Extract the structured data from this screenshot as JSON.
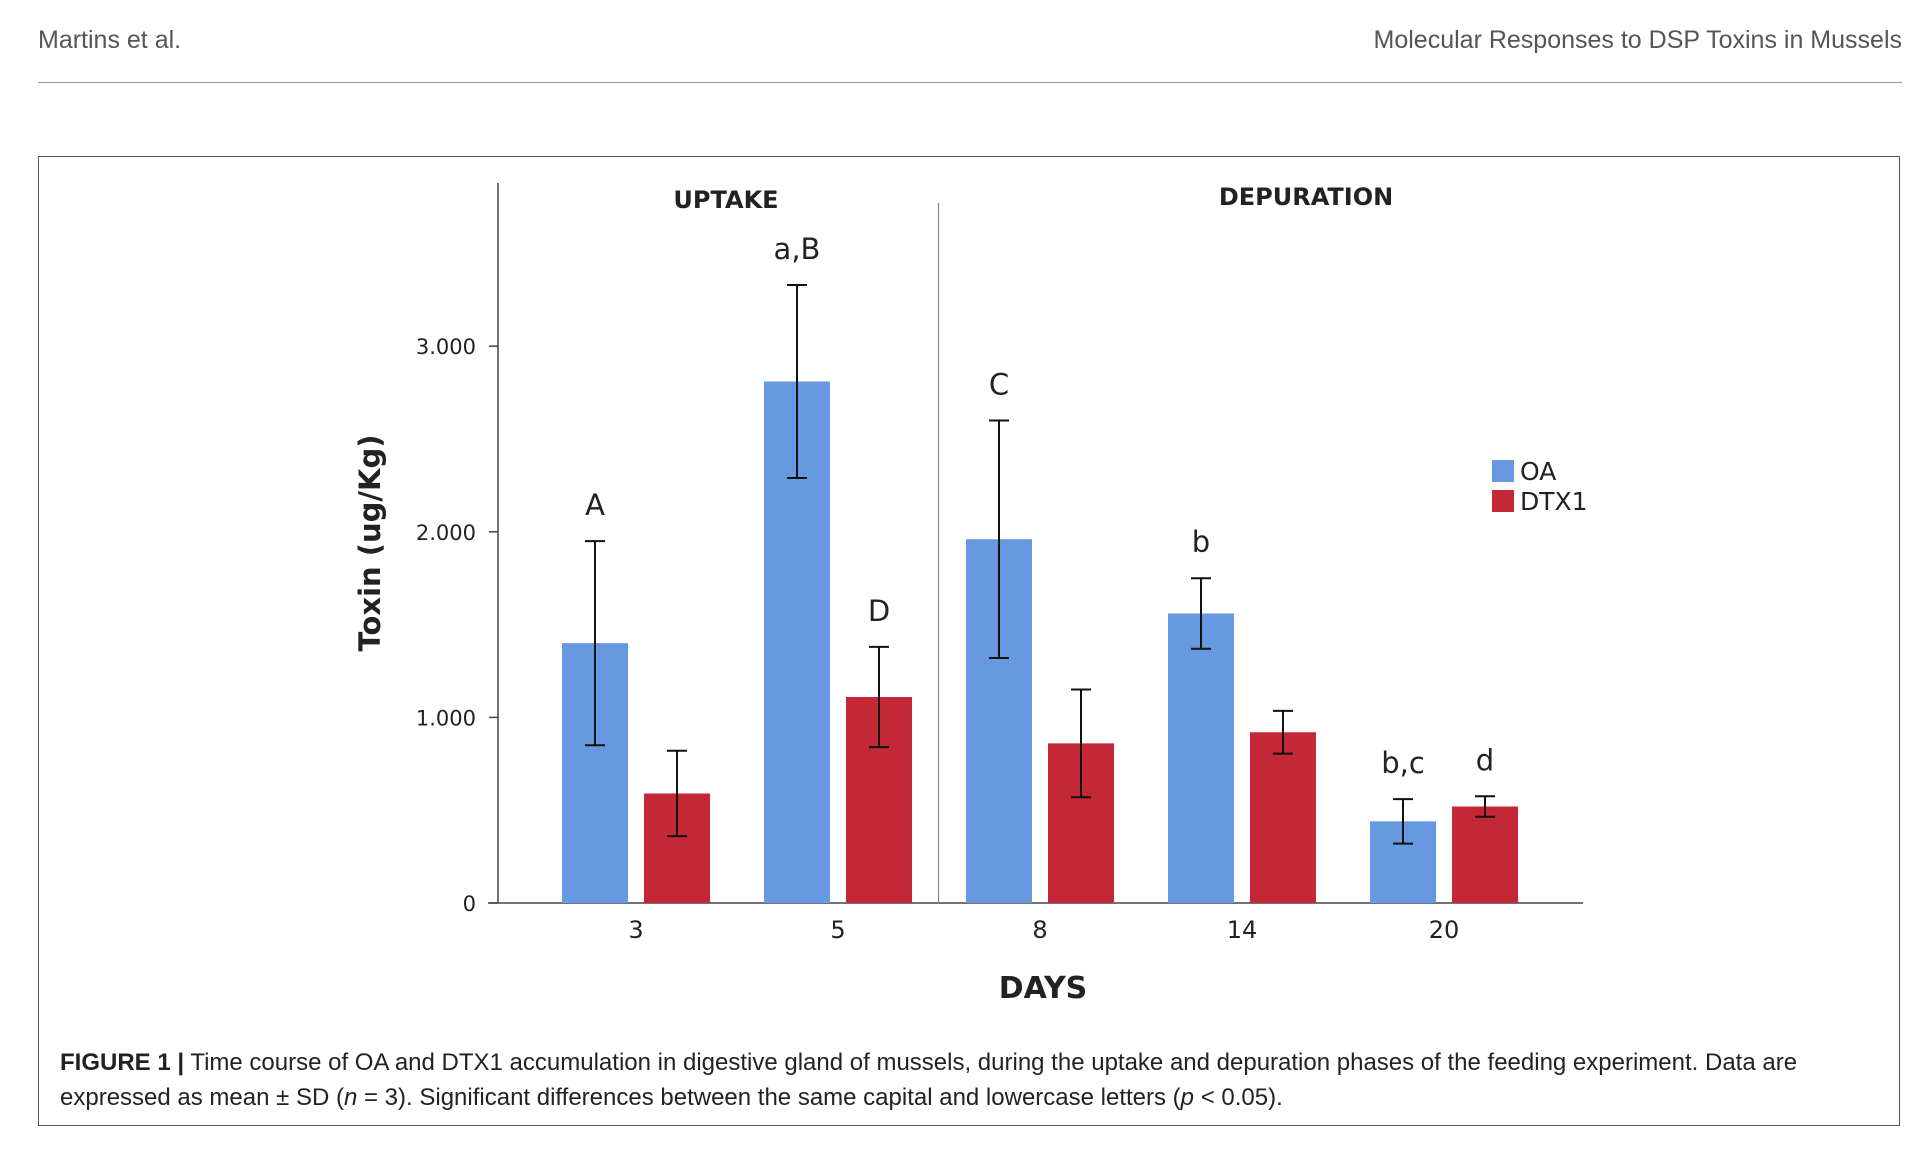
{
  "header": {
    "left": "Martins et al.",
    "right": "Molecular Responses to DSP Toxins in Mussels"
  },
  "caption": {
    "label": "FIGURE 1 |",
    "line1": "Time course of OA and DTX1 accumulation in digestive gland of mussels, during the uptake and depuration phases of the feeding experiment. Data are",
    "line2_a": "expressed as mean ± SD (",
    "line2_n": "n",
    "line2_b": " = 3). Significant differences between the same capital and lowercase letters (",
    "line2_p": "p",
    "line2_c": " < 0.05)."
  },
  "chart_data": {
    "type": "bar",
    "xlabel": "DAYS",
    "ylabel": "Toxin (ug/Kg)",
    "ylim": [
      0,
      3600
    ],
    "yticks": [
      0,
      1000,
      2000,
      3000
    ],
    "ytick_labels": [
      "0",
      "1.000",
      "2.000",
      "3.000"
    ],
    "categories": [
      "3",
      "5",
      "8",
      "14",
      "20"
    ],
    "phases": [
      {
        "label": "UPTAKE",
        "categories": [
          "3",
          "5"
        ]
      },
      {
        "label": "DEPURATION",
        "categories": [
          "8",
          "14",
          "20"
        ]
      }
    ],
    "series": [
      {
        "name": "OA",
        "color": "#6699e0",
        "values": [
          1400,
          2810,
          1960,
          1560,
          440
        ],
        "sd": [
          550,
          520,
          640,
          190,
          120
        ],
        "letters": [
          "A",
          "a,B",
          "C",
          "b",
          "b,c"
        ]
      },
      {
        "name": "DTX1",
        "color": "#c42837",
        "values": [
          590,
          1110,
          860,
          920,
          520
        ],
        "sd": [
          230,
          270,
          290,
          115,
          55
        ],
        "letters": [
          "",
          "D",
          "",
          "",
          "d"
        ]
      }
    ],
    "legend_position": "right",
    "grid": false
  }
}
